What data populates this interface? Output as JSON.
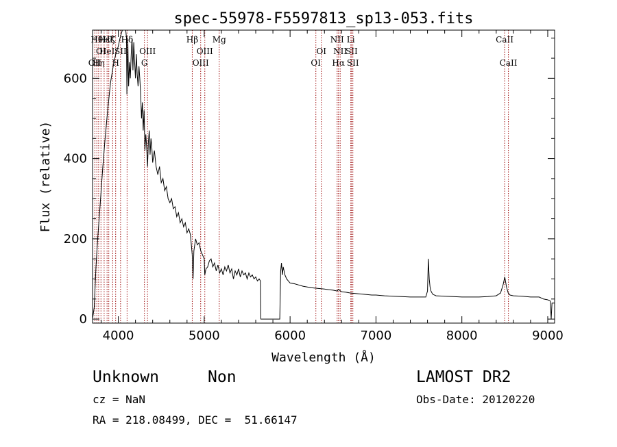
{
  "title": "spec-55978-F5597813_sp13-053.fits",
  "footer": {
    "class": "Unknown",
    "subclass": "Non",
    "survey": "LAMOST DR2",
    "cz": "cz = NaN",
    "obs_date": "Obs-Date: 20120220",
    "coords": "RA = 218.08499, DEC =  51.66147"
  },
  "chart_data": {
    "type": "line",
    "title": "spec-55978-F5597813_sp13-053.fits",
    "xlabel": "Wavelength (Å)",
    "ylabel": "Flux (relative)",
    "xlim": [
      3700,
      9080
    ],
    "ylim": [
      -10,
      720
    ],
    "xticks": [
      4000,
      5000,
      6000,
      7000,
      8000,
      9000
    ],
    "yticks": [
      0,
      200,
      400,
      600
    ],
    "grid": false,
    "line_color": "#000000",
    "marker_line_color": "#a01010",
    "series": [
      {
        "points": [
          [
            3700,
            0
          ],
          [
            3720,
            30
          ],
          [
            3740,
            130
          ],
          [
            3760,
            200
          ],
          [
            3790,
            290
          ],
          [
            3820,
            380
          ],
          [
            3850,
            460
          ],
          [
            3880,
            530
          ],
          [
            3910,
            590
          ],
          [
            3940,
            630
          ],
          [
            3970,
            660
          ],
          [
            4000,
            680
          ],
          [
            4020,
            700
          ],
          [
            4040,
            715
          ],
          [
            4060,
            730
          ],
          [
            4080,
            735
          ],
          [
            4095,
            700
          ],
          [
            4100,
            560
          ],
          [
            4105,
            620
          ],
          [
            4110,
            700
          ],
          [
            4120,
            580
          ],
          [
            4130,
            640
          ],
          [
            4140,
            600
          ],
          [
            4150,
            660
          ],
          [
            4160,
            700
          ],
          [
            4170,
            620
          ],
          [
            4180,
            690
          ],
          [
            4190,
            640
          ],
          [
            4200,
            600
          ],
          [
            4210,
            660
          ],
          [
            4220,
            610
          ],
          [
            4230,
            580
          ],
          [
            4240,
            630
          ],
          [
            4250,
            600
          ],
          [
            4260,
            560
          ],
          [
            4270,
            500
          ],
          [
            4280,
            540
          ],
          [
            4290,
            470
          ],
          [
            4300,
            520
          ],
          [
            4310,
            420
          ],
          [
            4320,
            460
          ],
          [
            4330,
            430
          ],
          [
            4340,
            380
          ],
          [
            4350,
            440
          ],
          [
            4360,
            470
          ],
          [
            4370,
            410
          ],
          [
            4380,
            450
          ],
          [
            4390,
            430
          ],
          [
            4400,
            390
          ],
          [
            4420,
            420
          ],
          [
            4440,
            380
          ],
          [
            4460,
            360
          ],
          [
            4480,
            380
          ],
          [
            4500,
            340
          ],
          [
            4520,
            350
          ],
          [
            4540,
            320
          ],
          [
            4560,
            330
          ],
          [
            4580,
            300
          ],
          [
            4600,
            290
          ],
          [
            4620,
            300
          ],
          [
            4640,
            275
          ],
          [
            4660,
            280
          ],
          [
            4680,
            255
          ],
          [
            4700,
            265
          ],
          [
            4720,
            240
          ],
          [
            4740,
            250
          ],
          [
            4760,
            230
          ],
          [
            4780,
            240
          ],
          [
            4800,
            215
          ],
          [
            4820,
            225
          ],
          [
            4840,
            210
          ],
          [
            4861,
            160
          ],
          [
            4870,
            100
          ],
          [
            4880,
            170
          ],
          [
            4900,
            200
          ],
          [
            4920,
            185
          ],
          [
            4940,
            190
          ],
          [
            4960,
            170
          ],
          [
            4980,
            160
          ],
          [
            5000,
            150
          ],
          [
            5007,
            110
          ],
          [
            5020,
            125
          ],
          [
            5040,
            130
          ],
          [
            5060,
            145
          ],
          [
            5080,
            150
          ],
          [
            5100,
            130
          ],
          [
            5120,
            140
          ],
          [
            5140,
            120
          ],
          [
            5160,
            135
          ],
          [
            5180,
            115
          ],
          [
            5200,
            125
          ],
          [
            5220,
            110
          ],
          [
            5240,
            130
          ],
          [
            5260,
            120
          ],
          [
            5280,
            135
          ],
          [
            5300,
            115
          ],
          [
            5320,
            125
          ],
          [
            5340,
            100
          ],
          [
            5360,
            120
          ],
          [
            5380,
            110
          ],
          [
            5400,
            125
          ],
          [
            5420,
            105
          ],
          [
            5440,
            120
          ],
          [
            5460,
            110
          ],
          [
            5480,
            115
          ],
          [
            5500,
            100
          ],
          [
            5520,
            115
          ],
          [
            5540,
            105
          ],
          [
            5560,
            110
          ],
          [
            5580,
            100
          ],
          [
            5600,
            105
          ],
          [
            5620,
            95
          ],
          [
            5640,
            100
          ],
          [
            5655,
            95
          ],
          [
            5660,
            0
          ],
          [
            5880,
            0
          ],
          [
            5890,
            120
          ],
          [
            5900,
            140
          ],
          [
            5910,
            110
          ],
          [
            5920,
            130
          ],
          [
            5940,
            110
          ],
          [
            5960,
            100
          ],
          [
            5980,
            95
          ],
          [
            6000,
            90
          ],
          [
            6050,
            88
          ],
          [
            6100,
            85
          ],
          [
            6150,
            82
          ],
          [
            6200,
            80
          ],
          [
            6250,
            78
          ],
          [
            6300,
            77
          ],
          [
            6350,
            76
          ],
          [
            6400,
            75
          ],
          [
            6450,
            73
          ],
          [
            6500,
            72
          ],
          [
            6550,
            70
          ],
          [
            6563,
            74
          ],
          [
            6600,
            68
          ],
          [
            6650,
            67
          ],
          [
            6700,
            65
          ],
          [
            6750,
            64
          ],
          [
            6800,
            63
          ],
          [
            6850,
            62
          ],
          [
            6900,
            61
          ],
          [
            6950,
            60
          ],
          [
            7000,
            60
          ],
          [
            7100,
            58
          ],
          [
            7200,
            57
          ],
          [
            7300,
            56
          ],
          [
            7400,
            55
          ],
          [
            7500,
            55
          ],
          [
            7580,
            55
          ],
          [
            7600,
            70
          ],
          [
            7610,
            150
          ],
          [
            7620,
            100
          ],
          [
            7630,
            80
          ],
          [
            7640,
            70
          ],
          [
            7660,
            62
          ],
          [
            7700,
            58
          ],
          [
            7800,
            57
          ],
          [
            7900,
            56
          ],
          [
            8000,
            55
          ],
          [
            8100,
            55
          ],
          [
            8200,
            55
          ],
          [
            8300,
            56
          ],
          [
            8400,
            58
          ],
          [
            8450,
            65
          ],
          [
            8480,
            85
          ],
          [
            8500,
            105
          ],
          [
            8520,
            80
          ],
          [
            8540,
            65
          ],
          [
            8560,
            60
          ],
          [
            8600,
            58
          ],
          [
            8700,
            57
          ],
          [
            8800,
            55
          ],
          [
            8900,
            55
          ],
          [
            8950,
            50
          ],
          [
            9000,
            48
          ],
          [
            9030,
            45
          ],
          [
            9040,
            0
          ],
          [
            9050,
            40
          ],
          [
            9080,
            40
          ]
        ]
      }
    ],
    "line_markers": [
      {
        "x": 3727,
        "label": "OII",
        "row": 2
      },
      {
        "x": 3750,
        "label": "Hθ",
        "row": 0
      },
      {
        "x": 3771,
        "label": "Hη",
        "row": 2
      },
      {
        "x": 3798,
        "label": "OI",
        "row": 1
      },
      {
        "x": 3835,
        "label": "Hε",
        "row": 0
      },
      {
        "x": 3869,
        "label": "HeI",
        "row": 1
      },
      {
        "x": 3889,
        "label": "Hζ",
        "row": 0
      },
      {
        "x": 3934,
        "label": "K",
        "row": 0
      },
      {
        "x": 3969,
        "label": "H",
        "row": 2
      },
      {
        "x": 4026,
        "label": "SII",
        "row": 1
      },
      {
        "x": 4102,
        "label": "Hδ",
        "row": 0
      },
      {
        "x": 4304,
        "label": "G",
        "row": 2
      },
      {
        "x": 4340,
        "label": "OIII",
        "row": 1
      },
      {
        "x": 4861,
        "label": "Hβ",
        "row": 0
      },
      {
        "x": 4959,
        "label": "OIII",
        "row": 2
      },
      {
        "x": 5007,
        "label": "OIII",
        "row": 1
      },
      {
        "x": 5175,
        "label": "Mg",
        "row": 0
      },
      {
        "x": 6300,
        "label": "OI",
        "row": 2
      },
      {
        "x": 6364,
        "label": "OI",
        "row": 1
      },
      {
        "x": 6548,
        "label": "NII",
        "row": 0
      },
      {
        "x": 6563,
        "label": "Hα",
        "row": 2
      },
      {
        "x": 6583,
        "label": "NII",
        "row": 1
      },
      {
        "x": 6707,
        "label": "Li",
        "row": 0
      },
      {
        "x": 6716,
        "label": "SII",
        "row": 1
      },
      {
        "x": 6731,
        "label": "SII",
        "row": 2
      },
      {
        "x": 8498,
        "label": "CaII",
        "row": 0
      },
      {
        "x": 8542,
        "label": "CaII",
        "row": 2
      }
    ]
  }
}
